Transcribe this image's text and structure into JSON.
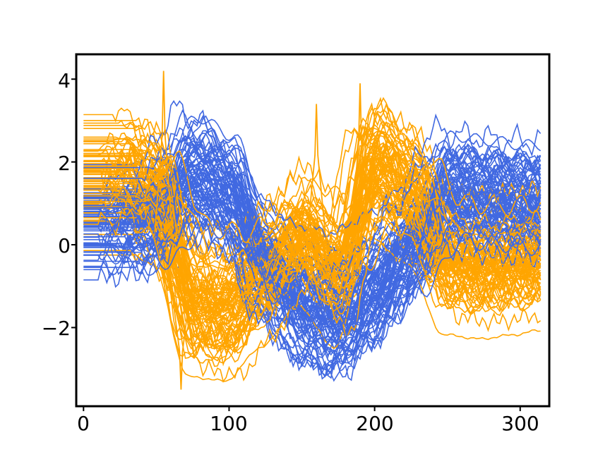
{
  "chart_data": {
    "type": "line",
    "title": "",
    "xlabel": "",
    "ylabel": "",
    "xlim": [
      -5,
      320
    ],
    "ylim": [
      -3.9,
      4.6
    ],
    "xticks": [
      0,
      100,
      200,
      300
    ],
    "yticks": [
      4,
      2,
      0,
      -2
    ],
    "xtick_labels": [
      "0",
      "100",
      "200",
      "300"
    ],
    "ytick_labels": [
      "4",
      "2",
      "0",
      "−2"
    ],
    "grid": false,
    "legend": "none",
    "series": [
      {
        "color": "#4169e1",
        "count_estimate": "hundreds",
        "x": [
          0,
          25,
          50,
          75,
          100,
          125,
          150,
          175,
          200,
          225,
          250,
          275,
          300,
          315
        ],
        "mean_profile": [
          0.4,
          0.5,
          0.6,
          1.6,
          1.2,
          -0.6,
          -1.6,
          -1.9,
          -1.2,
          -0.2,
          1.2,
          1.1,
          1.0,
          1.0
        ],
        "spread": 0.9
      },
      {
        "color": "#ffa500",
        "count_estimate": "hundreds",
        "x": [
          0,
          25,
          50,
          75,
          100,
          125,
          150,
          175,
          200,
          225,
          250,
          275,
          300,
          315
        ],
        "mean_profile": [
          1.4,
          1.8,
          1.4,
          -1.3,
          -1.4,
          -0.6,
          0.4,
          -0.6,
          2.0,
          1.4,
          -0.3,
          -0.4,
          -0.3,
          -0.2
        ],
        "spread": 1.0
      }
    ],
    "notable_peaks": [
      {
        "color": "#ffa500",
        "x": 55,
        "y": 4.2
      },
      {
        "color": "#ffa500",
        "x": 160,
        "y": 3.4
      },
      {
        "color": "#ffa500",
        "x": 190,
        "y": 3.9
      },
      {
        "color": "#ffa500",
        "x": 67,
        "y": -3.5
      }
    ]
  }
}
